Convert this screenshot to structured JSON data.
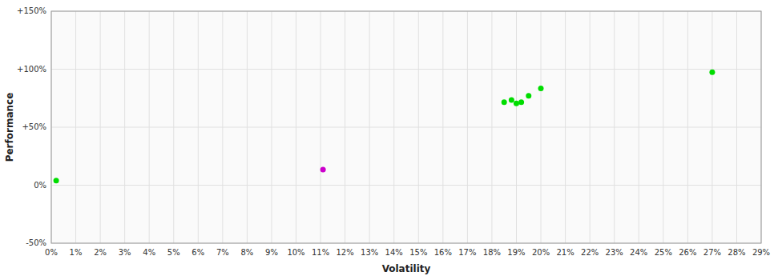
{
  "chart_data": {
    "type": "scatter",
    "xlabel": "Volatility",
    "ylabel": "Performance",
    "grid": true,
    "xlim": [
      0.0,
      0.29
    ],
    "ylim": [
      -0.5,
      1.5
    ],
    "xticks": [
      {
        "value": 0.0,
        "label": "0%"
      },
      {
        "value": 0.01,
        "label": "1%"
      },
      {
        "value": 0.02,
        "label": "2%"
      },
      {
        "value": 0.03,
        "label": "3%"
      },
      {
        "value": 0.04,
        "label": "4%"
      },
      {
        "value": 0.05,
        "label": "5%"
      },
      {
        "value": 0.06,
        "label": "6%"
      },
      {
        "value": 0.07,
        "label": "7%"
      },
      {
        "value": 0.08,
        "label": "8%"
      },
      {
        "value": 0.09,
        "label": "9%"
      },
      {
        "value": 0.1,
        "label": "10%"
      },
      {
        "value": 0.11,
        "label": "11%"
      },
      {
        "value": 0.12,
        "label": "12%"
      },
      {
        "value": 0.13,
        "label": "13%"
      },
      {
        "value": 0.14,
        "label": "14%"
      },
      {
        "value": 0.15,
        "label": "15%"
      },
      {
        "value": 0.16,
        "label": "16%"
      },
      {
        "value": 0.17,
        "label": "17%"
      },
      {
        "value": 0.18,
        "label": "18%"
      },
      {
        "value": 0.19,
        "label": "19%"
      },
      {
        "value": 0.2,
        "label": "20%"
      },
      {
        "value": 0.21,
        "label": "21%"
      },
      {
        "value": 0.22,
        "label": "22%"
      },
      {
        "value": 0.23,
        "label": "23%"
      },
      {
        "value": 0.24,
        "label": "24%"
      },
      {
        "value": 0.25,
        "label": "25%"
      },
      {
        "value": 0.26,
        "label": "26%"
      },
      {
        "value": 0.27,
        "label": "27%"
      },
      {
        "value": 0.28,
        "label": "28%"
      },
      {
        "value": 0.29,
        "label": "29%"
      }
    ],
    "yticks": [
      {
        "value": -0.5,
        "label": "-50%"
      },
      {
        "value": 0.0,
        "label": "0%"
      },
      {
        "value": 0.5,
        "label": "+50%"
      },
      {
        "value": 1.0,
        "label": "+100%"
      },
      {
        "value": 1.5,
        "label": "+150%"
      }
    ],
    "series": [
      {
        "color": "#00dd00",
        "x": [
          0.002,
          0.185,
          0.188,
          0.19,
          0.192,
          0.195,
          0.2,
          0.27
        ],
        "values": [
          0.04,
          0.715,
          0.735,
          0.705,
          0.715,
          0.77,
          0.835,
          0.975
        ]
      },
      {
        "color": "#cc00cc",
        "x": [
          0.111
        ],
        "values": [
          0.135
        ]
      }
    ]
  }
}
